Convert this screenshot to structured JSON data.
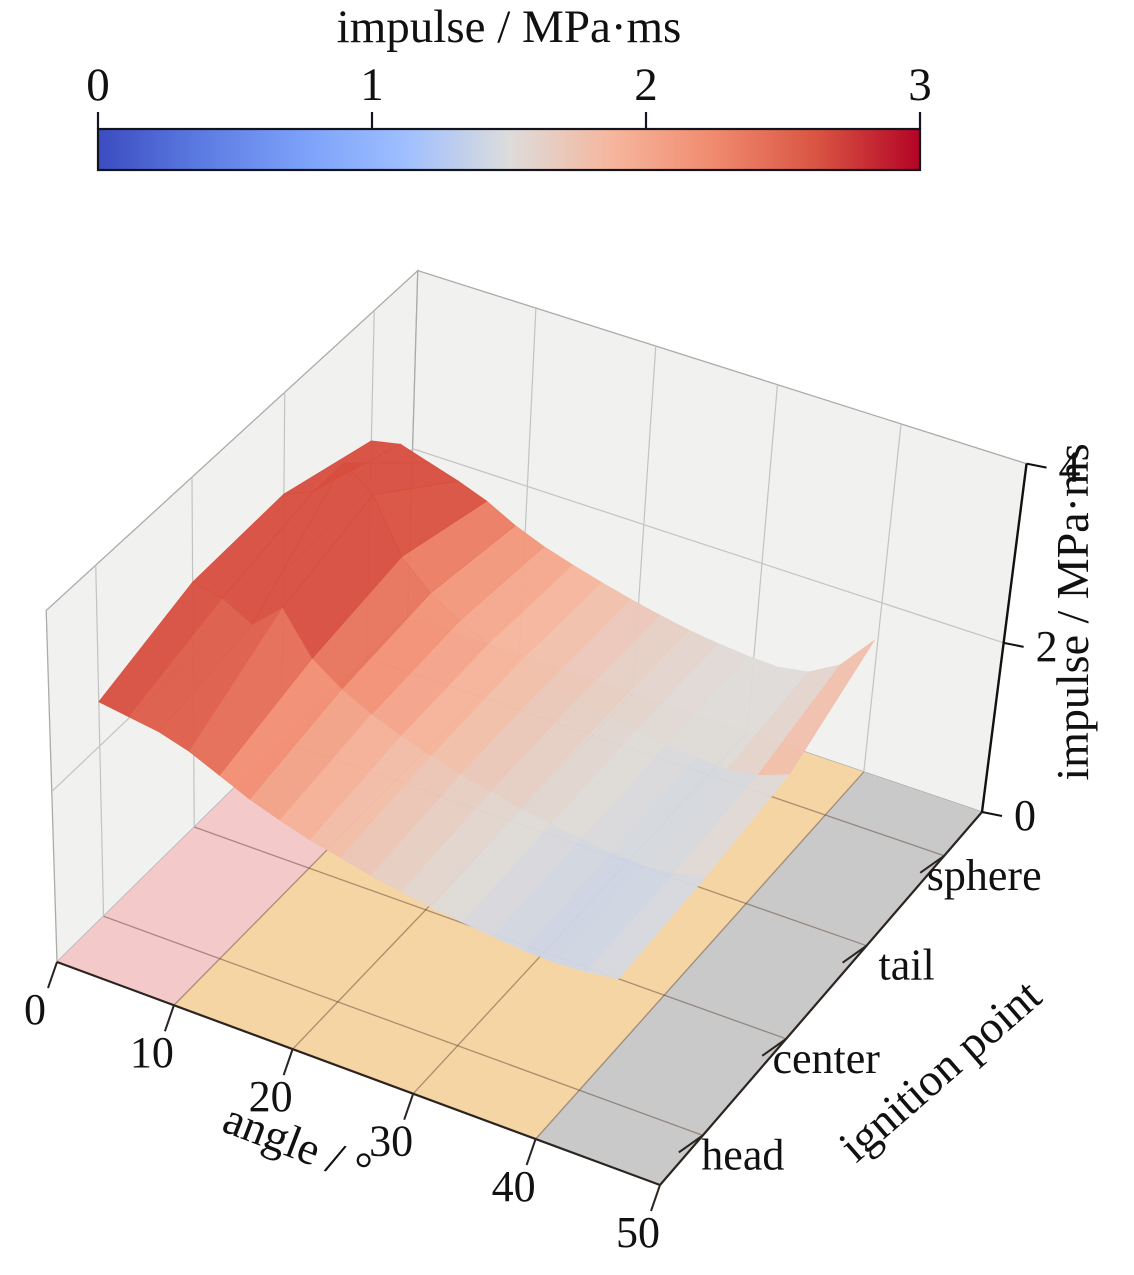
{
  "figure": {
    "kind": "3d-surface-plot",
    "background": "#ffffff"
  },
  "colorbar": {
    "title": "impulse / MPa·ms",
    "orientation": "horizontal",
    "tick_labels": [
      "0",
      "1",
      "2",
      "3"
    ],
    "tick_values": [
      0,
      1,
      2,
      3
    ],
    "vmin": 0,
    "vmax": 3,
    "colormap": "coolwarm",
    "colormap_stops": [
      "#3b4cc0",
      "#5c7be2",
      "#7ca1f9",
      "#9fbfff",
      "#dddcdb",
      "#f6b69d",
      "#f08a6e",
      "#d95442",
      "#b40426"
    ],
    "outline_color": "#14141f"
  },
  "axes": {
    "x": {
      "title": "angle / °",
      "tick_labels": [
        "0",
        "10",
        "20",
        "30",
        "40",
        "50"
      ],
      "tick_values": [
        0,
        10,
        20,
        30,
        40,
        50
      ],
      "range": [
        0,
        50
      ]
    },
    "y": {
      "title": "ignition point",
      "categories": [
        "head",
        "center",
        "tail",
        "sphere"
      ]
    },
    "z": {
      "title": "impulse / MPa·ms",
      "tick_labels": [
        "0",
        "2",
        "4"
      ],
      "tick_values": [
        0,
        2,
        4
      ],
      "range": [
        0,
        4
      ]
    }
  },
  "floor_bands": [
    {
      "angle_from": 0,
      "angle_to": 10,
      "color": "#f4c9ca"
    },
    {
      "angle_from": 10,
      "angle_to": 40,
      "color": "#f6d5a4"
    },
    {
      "angle_from": 40,
      "angle_to": 50,
      "color": "#c9c9c9"
    }
  ],
  "style_colors": {
    "pane": "#f1f1ef",
    "pane_border": "#ababab",
    "wall_grid": "#c3c3c3",
    "floor_grid_rgba": "rgba(95,70,55,0.5)",
    "spine": "#2b2420",
    "z_axis": "#111111"
  },
  "chart_data": {
    "type": "surface",
    "title": "",
    "xlabel": "angle / °",
    "ylabel": "ignition point",
    "zlabel": "impulse / MPa·ms",
    "xlim": [
      0,
      50
    ],
    "zlim": [
      0,
      4
    ],
    "color_vmin": 0,
    "color_vmax": 3,
    "colormap": "coolwarm",
    "x_angles_deg": [
      0,
      2.5,
      5,
      7.5,
      10,
      12.5,
      15,
      17.5,
      20,
      22.5,
      25,
      27.5,
      30,
      32.5,
      35,
      37.5,
      40,
      42.5
    ],
    "y_categories": [
      "head",
      "center",
      "tail",
      "sphere"
    ],
    "z_impulse_MPa_ms": {
      "head": [
        2.5,
        2.45,
        2.4,
        2.3,
        2.15,
        2.0,
        1.88,
        1.78,
        1.7,
        1.62,
        1.56,
        1.5,
        1.46,
        1.42,
        1.39,
        1.38,
        1.4,
        1.45
      ],
      "center": [
        2.85,
        2.78,
        2.6,
        2.9,
        2.45,
        2.22,
        2.05,
        1.92,
        1.81,
        1.72,
        1.64,
        1.57,
        1.51,
        1.46,
        1.43,
        1.41,
        1.44,
        1.52
      ],
      "tail": [
        2.88,
        3.02,
        3.44,
        3.2,
        2.62,
        2.32,
        2.12,
        1.97,
        1.86,
        1.76,
        1.68,
        1.61,
        1.56,
        1.51,
        1.48,
        1.46,
        1.52,
        1.65
      ],
      "sphere": [
        2.55,
        2.62,
        2.52,
        2.42,
        2.3,
        2.13,
        2.0,
        1.9,
        1.81,
        1.73,
        1.66,
        1.6,
        1.56,
        1.53,
        1.52,
        1.58,
        1.78,
        2.18
      ]
    }
  }
}
